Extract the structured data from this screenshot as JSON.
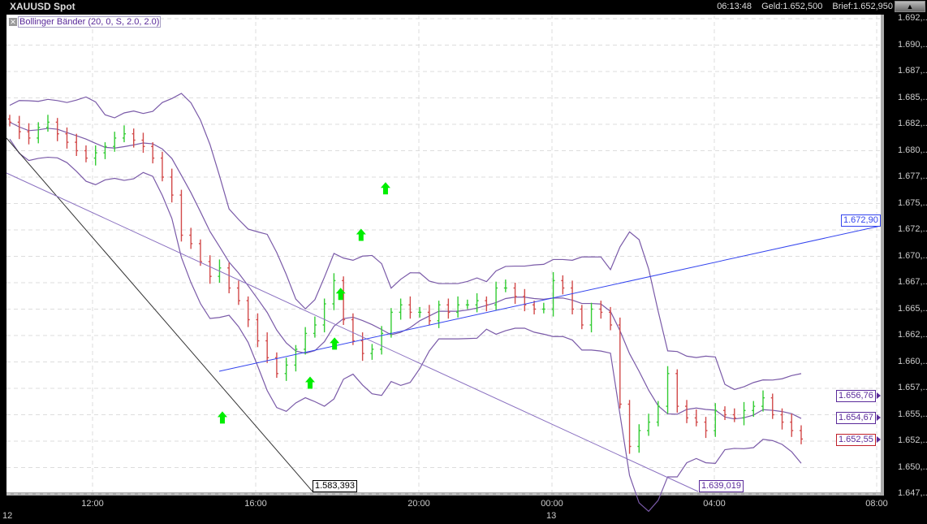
{
  "header": {
    "title": "XAUUSD Spot",
    "time": "06:13:48",
    "bid": "Geld:1.652,500",
    "ask": "Brief:1.652,950",
    "scroll_icon": "chevron-up-icon"
  },
  "indicator": {
    "label": "Bollinger Bänder (20, 0, S, 2.0, 2.0)",
    "close_icon": "close-icon"
  },
  "chart_data": {
    "type": "ohlc",
    "colors": {
      "up": "#33cc33",
      "down": "#d24a4a",
      "bands": "#7a5aa8",
      "grid": "#dddddd",
      "trend_black": "#333333",
      "trend_purple": "#8a70c0",
      "trend_blue": "#3344ee",
      "arrows": "#00ee00"
    },
    "y_ticks": [
      "1.692,..",
      "1.690,..",
      "1.687,..",
      "1.685,..",
      "1.682,..",
      "1.680,..",
      "1.677,..",
      "1.675,..",
      "1.672,..",
      "1.670,..",
      "1.667,..",
      "1.665,..",
      "1.662,..",
      "1.660,..",
      "1.657,..",
      "1.655,..",
      "1.652,..",
      "1.650,..",
      "1.647,.."
    ],
    "y_tick_values": [
      1.6925,
      1.69,
      1.6875,
      1.685,
      1.6825,
      1.68,
      1.6775,
      1.675,
      1.6725,
      1.67,
      1.6675,
      1.665,
      1.6625,
      1.66,
      1.6575,
      1.655,
      1.6525,
      1.65,
      1.6475
    ],
    "ylim": [
      1.6468,
      1.6932
    ],
    "x_ticks": [
      "12:00",
      "16:00",
      "20:00",
      "00:00",
      "04:00",
      "08:00"
    ],
    "date_labels": [
      "12",
      "13"
    ],
    "closes": [
      1.6827,
      1.6818,
      1.6812,
      1.6822,
      1.6827,
      1.6816,
      1.6808,
      1.68,
      1.6793,
      1.6798,
      1.6804,
      1.6812,
      1.6816,
      1.681,
      1.6804,
      1.6793,
      1.6775,
      1.6758,
      1.672,
      1.6712,
      1.6695,
      1.6681,
      1.6689,
      1.667,
      1.6658,
      1.664,
      1.662,
      1.6604,
      1.6589,
      1.6597,
      1.6612,
      1.6627,
      1.6635,
      1.6655,
      1.6677,
      1.664,
      1.662,
      1.6608,
      1.6612,
      1.6627,
      1.6647,
      1.6654,
      1.6647,
      1.6647,
      1.6639,
      1.6654,
      1.6647,
      1.6654,
      1.6654,
      1.6658,
      1.6654,
      1.667,
      1.667,
      1.6662,
      1.6654,
      1.665,
      1.665,
      1.6677,
      1.667,
      1.665,
      1.6635,
      1.665,
      1.6647,
      1.6635,
      1.656,
      1.652,
      1.6535,
      1.6543,
      1.6558,
      1.6589,
      1.6558,
      1.6547,
      1.6543,
      1.6535,
      1.6554,
      1.655,
      1.6547,
      1.6554,
      1.6558,
      1.6566,
      1.655,
      1.6543,
      1.6535,
      1.6527
    ],
    "trendlines": [
      {
        "color": "trend_black",
        "label": "1.583,393"
      },
      {
        "color": "trend_purple",
        "label": "1.639,019"
      },
      {
        "color": "trend_blue",
        "label": "1.672,90"
      }
    ],
    "price_tags": [
      "1.656,76",
      "1.654,67",
      "1.652,55"
    ],
    "signal_arrows": [
      {
        "time": "15:11",
        "price": 1.6547
      },
      {
        "time": "17:20",
        "price": 1.658
      },
      {
        "time": "17:56",
        "price": 1.6617
      },
      {
        "time": "18:05",
        "price": 1.6664
      },
      {
        "time": "18:35",
        "price": 1.672
      },
      {
        "time": "19:11",
        "price": 1.6764
      }
    ]
  }
}
